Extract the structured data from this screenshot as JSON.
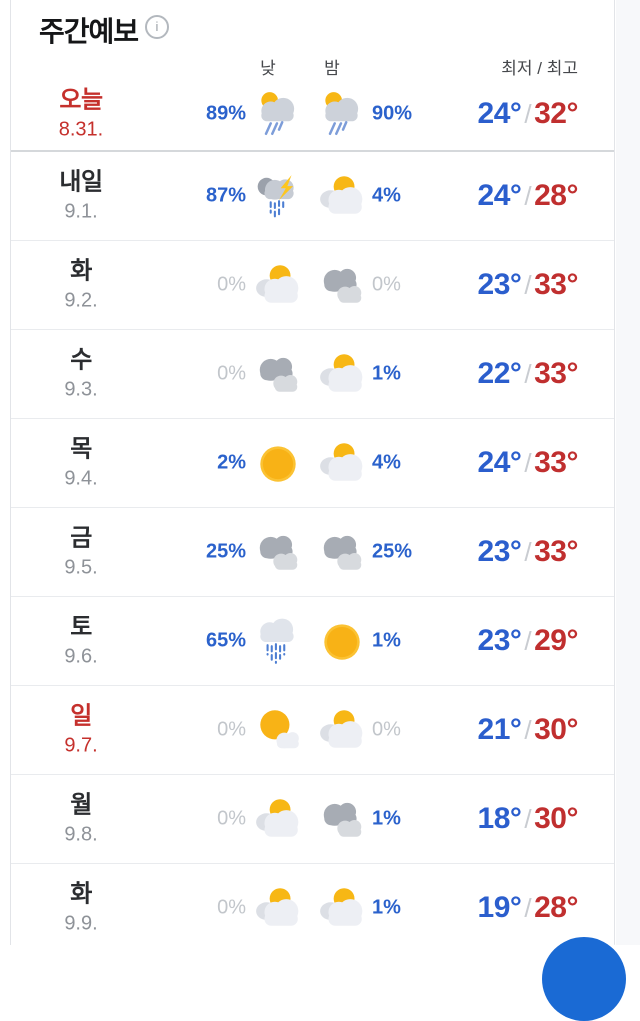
{
  "header": {
    "title": "주간예보"
  },
  "columns": {
    "day": "낮",
    "night": "밤",
    "minmax": "최저 / 최고"
  },
  "labels": {
    "temp_separator": "/"
  },
  "colors": {
    "percent_blue": "#2b62cc",
    "percent_muted": "#c2c6cb",
    "temp_min_blue": "#2b5ecd",
    "temp_max_red": "#c02f2f",
    "highlight_red": "#c5302c",
    "fab_blue": "#1a6ad4"
  },
  "rows": [
    {
      "day": "오늘",
      "date": "8.31.",
      "highlight": true,
      "day_pct": "89%",
      "day_icon": "sun-rain",
      "night_icon": "sun-rain",
      "night_pct": "90%",
      "min": "24°",
      "max": "32°"
    },
    {
      "day": "내일",
      "date": "9.1.",
      "highlight": false,
      "day_pct": "87%",
      "day_icon": "thunder-rain",
      "night_icon": "partly-cloudy",
      "night_pct": "4%",
      "min": "24°",
      "max": "28°"
    },
    {
      "day": "화",
      "date": "9.2.",
      "highlight": false,
      "day_pct": "0%",
      "day_icon": "partly-cloudy",
      "night_icon": "cloudy",
      "night_pct": "0%",
      "min": "23°",
      "max": "33°"
    },
    {
      "day": "수",
      "date": "9.3.",
      "highlight": false,
      "day_pct": "0%",
      "day_icon": "cloudy",
      "night_icon": "partly-cloudy",
      "night_pct": "1%",
      "min": "22°",
      "max": "33°"
    },
    {
      "day": "목",
      "date": "9.4.",
      "highlight": false,
      "day_pct": "2%",
      "day_icon": "sunny",
      "night_icon": "partly-cloudy",
      "night_pct": "4%",
      "min": "24°",
      "max": "33°"
    },
    {
      "day": "금",
      "date": "9.5.",
      "highlight": false,
      "day_pct": "25%",
      "day_icon": "cloudy",
      "night_icon": "cloudy",
      "night_pct": "25%",
      "min": "23°",
      "max": "33°"
    },
    {
      "day": "토",
      "date": "9.6.",
      "highlight": false,
      "day_pct": "65%",
      "day_icon": "rain",
      "night_icon": "sunny",
      "night_pct": "1%",
      "min": "23°",
      "max": "29°"
    },
    {
      "day": "일",
      "date": "9.7.",
      "highlight": true,
      "day_pct": "0%",
      "day_icon": "mostly-sunny",
      "night_icon": "partly-cloudy",
      "night_pct": "0%",
      "min": "21°",
      "max": "30°"
    },
    {
      "day": "월",
      "date": "9.8.",
      "highlight": false,
      "day_pct": "0%",
      "day_icon": "partly-cloudy",
      "night_icon": "cloudy",
      "night_pct": "1%",
      "min": "18°",
      "max": "30°"
    },
    {
      "day": "화",
      "date": "9.9.",
      "highlight": false,
      "day_pct": "0%",
      "day_icon": "partly-cloudy",
      "night_icon": "partly-cloudy",
      "night_pct": "1%",
      "min": "19°",
      "max": "28°"
    }
  ]
}
